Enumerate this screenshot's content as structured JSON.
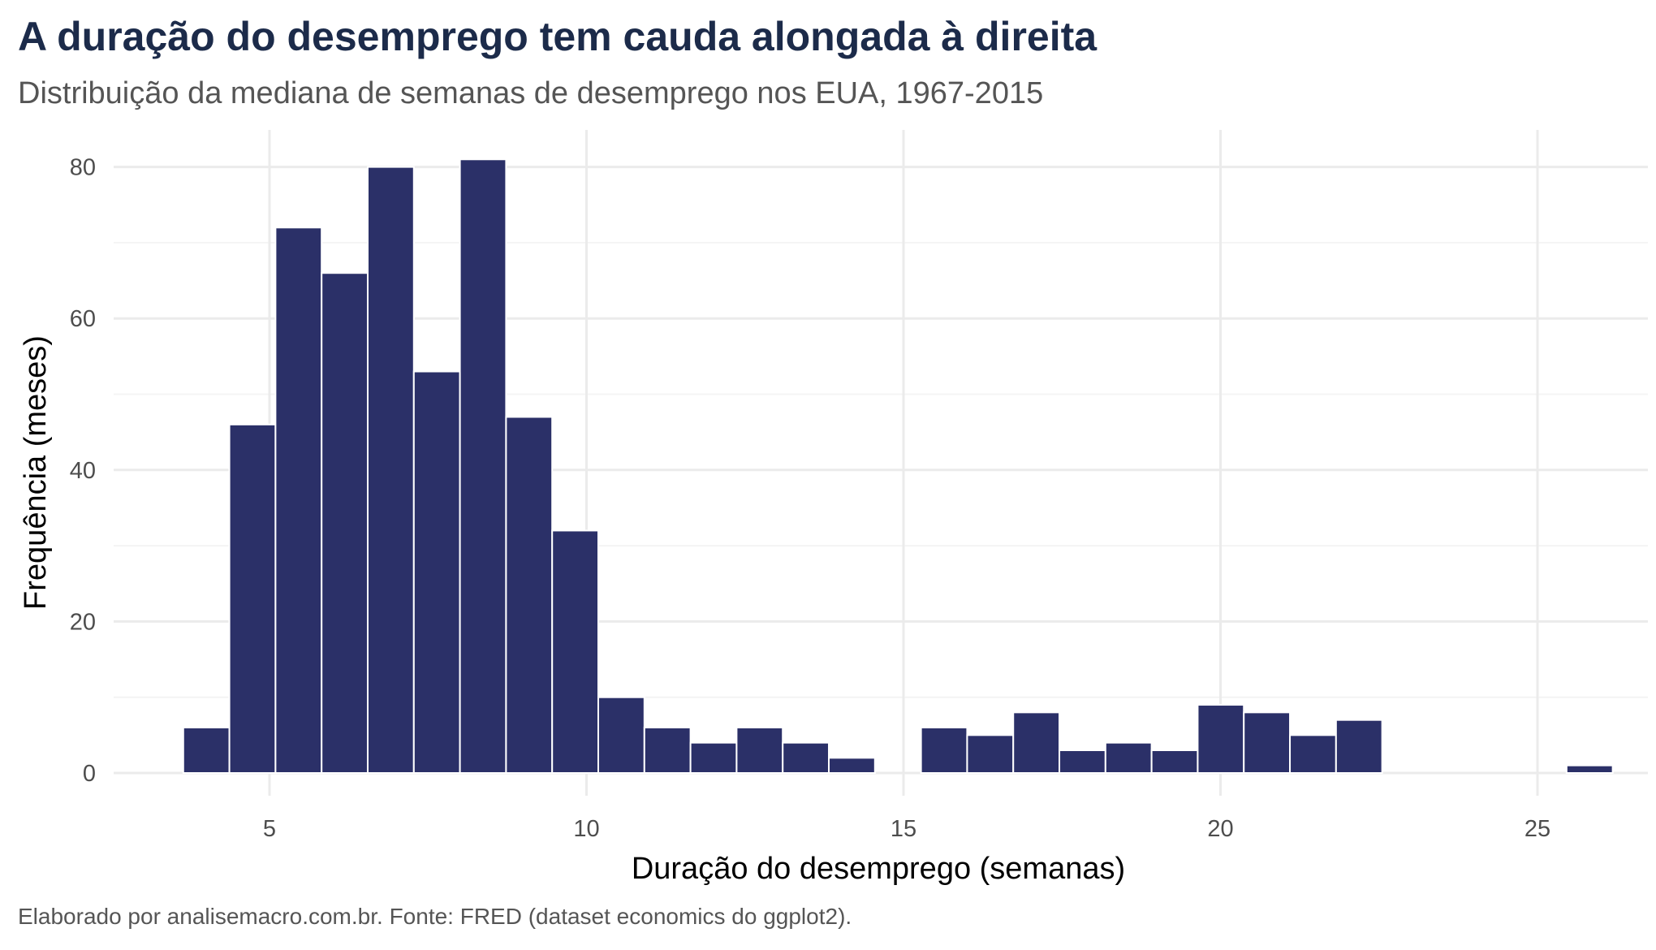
{
  "chart_data": {
    "type": "bar",
    "title": "A duração do desemprego tem cauda alongada à direita",
    "subtitle": "Distribuição da mediana de semanas de desemprego nos EUA, 1967-2015",
    "xlabel": "Duração do desemprego (semanas)",
    "ylabel": "Frequência (meses)",
    "caption": "Elaborado por analisemacro.com.br. Fonte: FRED (dataset economics do ggplot2).",
    "xlim": [
      3,
      26.5
    ],
    "ylim": [
      0,
      85
    ],
    "x_ticks": [
      5,
      10,
      15,
      20,
      25
    ],
    "y_ticks": [
      0,
      20,
      40,
      60,
      80
    ],
    "bin_width": 0.7273,
    "bin_start": 3.64,
    "counts": [
      6,
      46,
      72,
      66,
      80,
      53,
      81,
      47,
      32,
      10,
      6,
      4,
      6,
      4,
      2,
      0,
      6,
      5,
      8,
      3,
      4,
      3,
      9,
      8,
      5,
      7,
      0,
      0,
      0,
      0,
      1
    ],
    "bar_color": "#2b3068",
    "bar_outline": "#ffffff",
    "grid": true
  }
}
